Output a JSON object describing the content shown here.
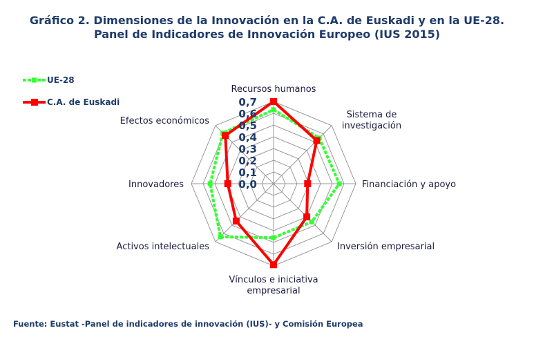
{
  "title": {
    "line1": "Gráfico 2. Dimensiones de la Innovación en la C.A. de Euskadi y en la UE-28.",
    "line2": "Panel de Indicadores de Innovación Europeo (IUS 2015)"
  },
  "source": "Fuente: Eustat -Panel de indicadores de innovación (IUS)- y Comisión Europea",
  "chart_data": {
    "type": "radar",
    "title": "Gráfico 2. Dimensiones de la Innovación en la C.A. de Euskadi y en la UE-28. Panel de Indicadores de Innovación Europeo (IUS 2015)",
    "categories": [
      "Recursos humanos",
      "Sistema de investigación",
      "Financiación y apoyo",
      "Inversión empresarial",
      "Vínculos e iniciativa empresarial",
      "Activos intelectuales",
      "Innovadores",
      "Efectos económicos"
    ],
    "category_lines": [
      [
        "Recursos humanos"
      ],
      [
        "Sistema de",
        "investigación"
      ],
      [
        "Financiación y apoyo"
      ],
      [
        "Inversión empresarial"
      ],
      [
        "Vínculos e iniciativa",
        "empresarial"
      ],
      [
        "Activos intelectuales"
      ],
      [
        "Innovadores"
      ],
      [
        "Efectos económicos"
      ]
    ],
    "rlim": [
      0,
      0.7
    ],
    "ticks": [
      "0,0",
      "0,1",
      "0,2",
      "0,3",
      "0,4",
      "0,5",
      "0,6",
      "0,7"
    ],
    "legend_position": "top-left",
    "series": [
      {
        "name": "UE-28",
        "color": "#33ff33",
        "values": [
          0.63,
          0.55,
          0.56,
          0.46,
          0.46,
          0.64,
          0.54,
          0.61
        ]
      },
      {
        "name": "C.A. de Euskadi",
        "color": "#ff0000",
        "values": [
          0.7,
          0.52,
          0.29,
          0.4,
          0.69,
          0.45,
          0.39,
          0.58
        ]
      }
    ]
  }
}
